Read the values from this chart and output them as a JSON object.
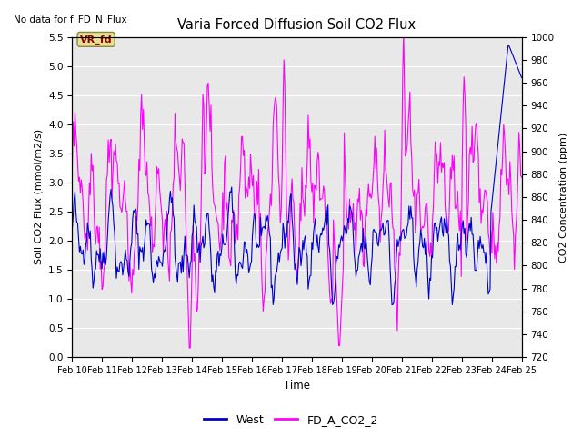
{
  "title": "Varia Forced Diffusion Soil CO2 Flux",
  "no_data_label": "No data for f_FD_N_Flux",
  "xlabel": "Time",
  "ylabel_left": "Soil CO2 Flux (mmol/m2/s)",
  "ylabel_right": "CO2 Concentration (ppm)",
  "ylim_left": [
    0.0,
    5.5
  ],
  "ylim_right": [
    720,
    1000
  ],
  "yticks_left": [
    0.0,
    0.5,
    1.0,
    1.5,
    2.0,
    2.5,
    3.0,
    3.5,
    4.0,
    4.5,
    5.0,
    5.5
  ],
  "yticks_right": [
    720,
    740,
    760,
    780,
    800,
    820,
    840,
    860,
    880,
    900,
    920,
    940,
    960,
    980,
    1000
  ],
  "xtick_labels": [
    "Feb 10",
    "Feb 11",
    "Feb 12",
    "Feb 13",
    "Feb 14",
    "Feb 15",
    "Feb 16",
    "Feb 17",
    "Feb 18",
    "Feb 19",
    "Feb 20",
    "Feb 21",
    "Feb 22",
    "Feb 23",
    "Feb 24",
    "Feb 25"
  ],
  "color_west": "#0000cc",
  "color_co2": "#ff00ff",
  "legend_entries": [
    "West",
    "FD_A_CO2_2"
  ],
  "annotation_text": "VR_fd",
  "annotation_color": "#8b0000",
  "annotation_bg": "#e8e090",
  "background_color": "#e8e8e8",
  "grid_color": "#ffffff",
  "fig_bg": "#ffffff"
}
